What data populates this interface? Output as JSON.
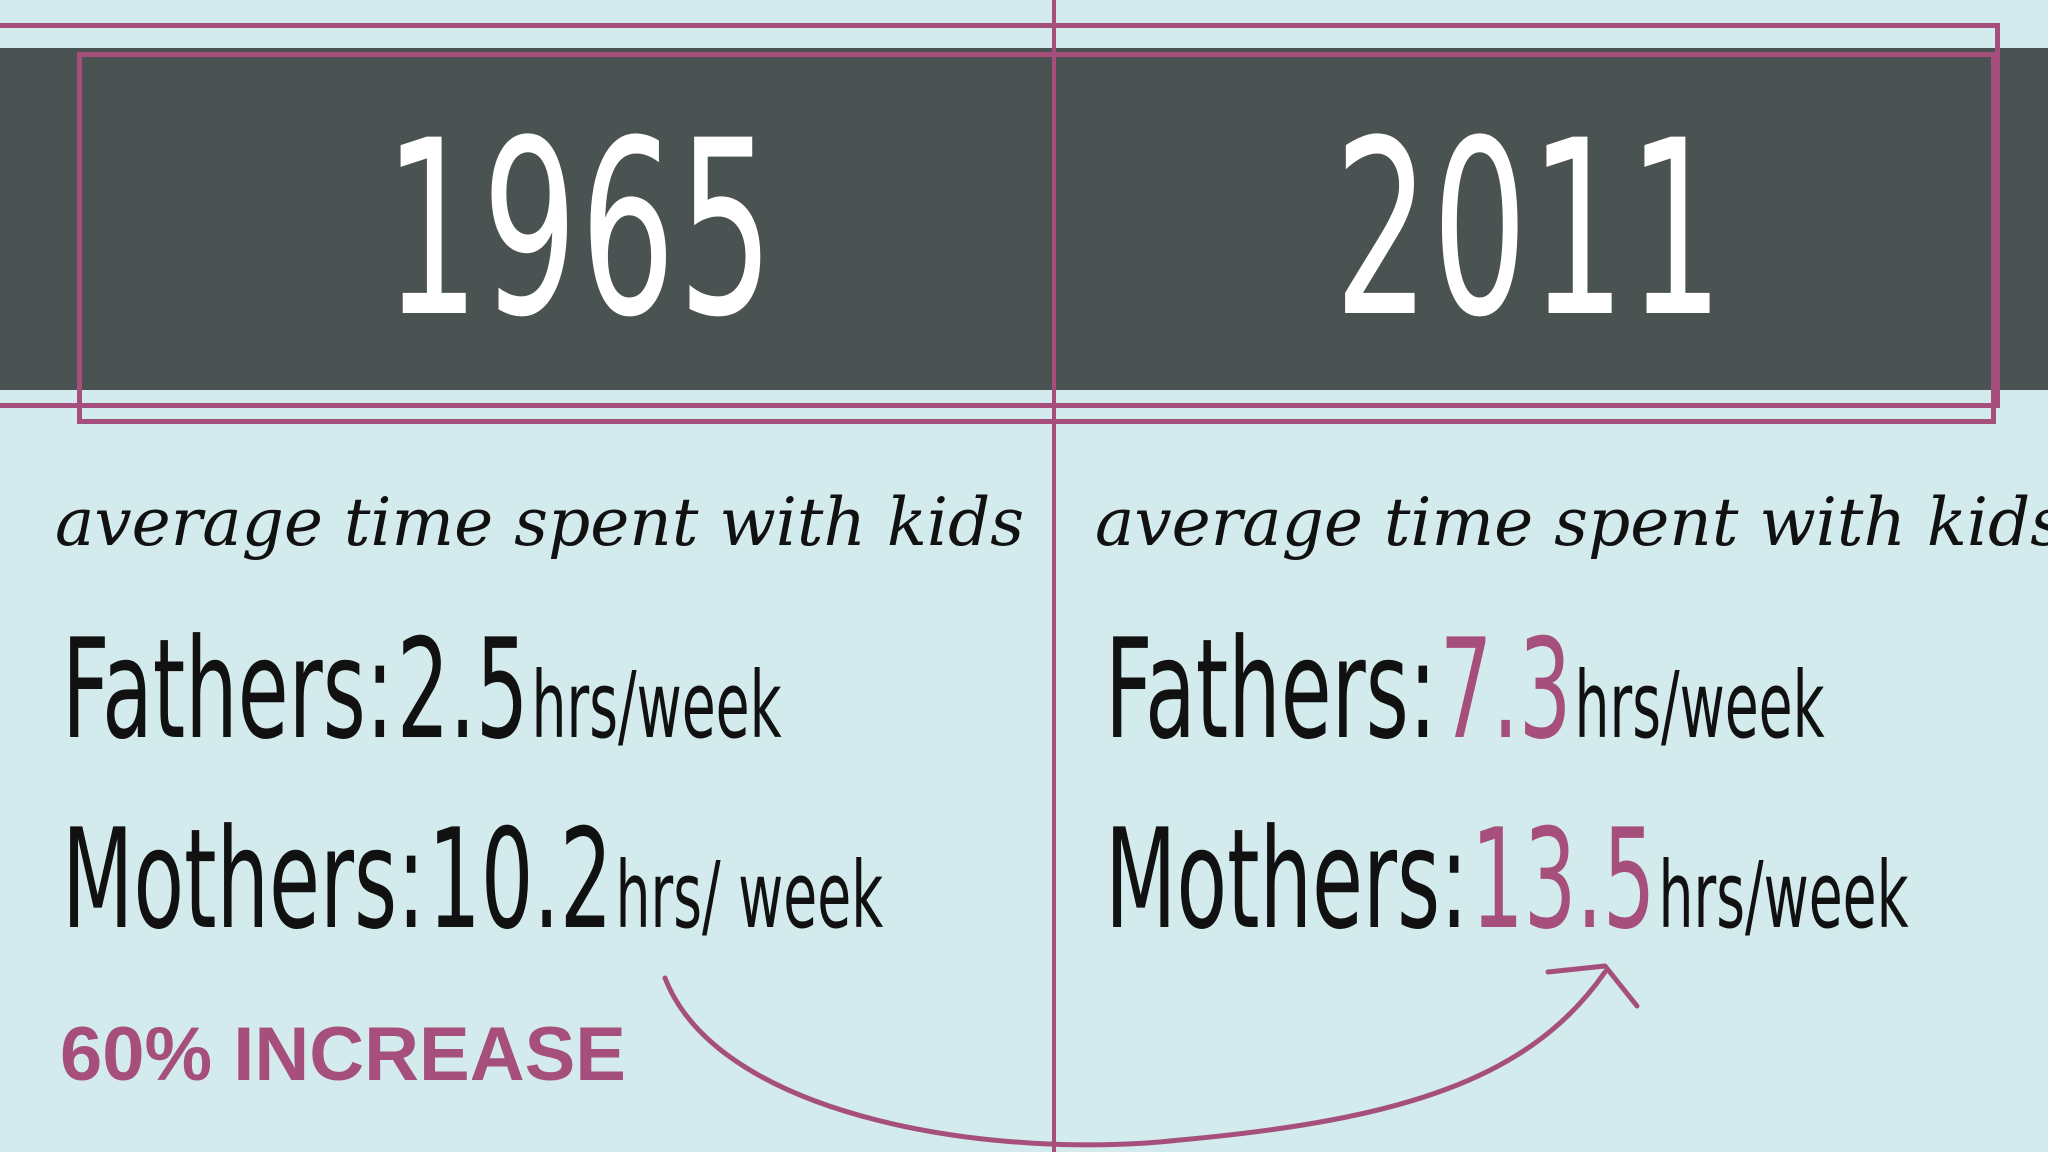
{
  "left": {
    "year": "1965",
    "subtitle": "average time spent with kids",
    "fathers": {
      "label": "Fathers:",
      "value": "2.5",
      "unit": "hrs/week"
    },
    "mothers": {
      "label": "Mothers:",
      "value": "10.2",
      "unit": "hrs/ week"
    }
  },
  "right": {
    "year": "2011",
    "subtitle": "average time spent with kids",
    "fathers": {
      "label": "Fathers:",
      "value": "7.3",
      "unit": "hrs/week"
    },
    "mothers": {
      "label": "Mothers:",
      "value": "13.5",
      "unit": "hrs/week"
    }
  },
  "callout": "60% INCREASE",
  "colors": {
    "background": "#d3ebec",
    "banner": "#4a5352",
    "accent": "#a64f7c",
    "text": "#111111"
  }
}
